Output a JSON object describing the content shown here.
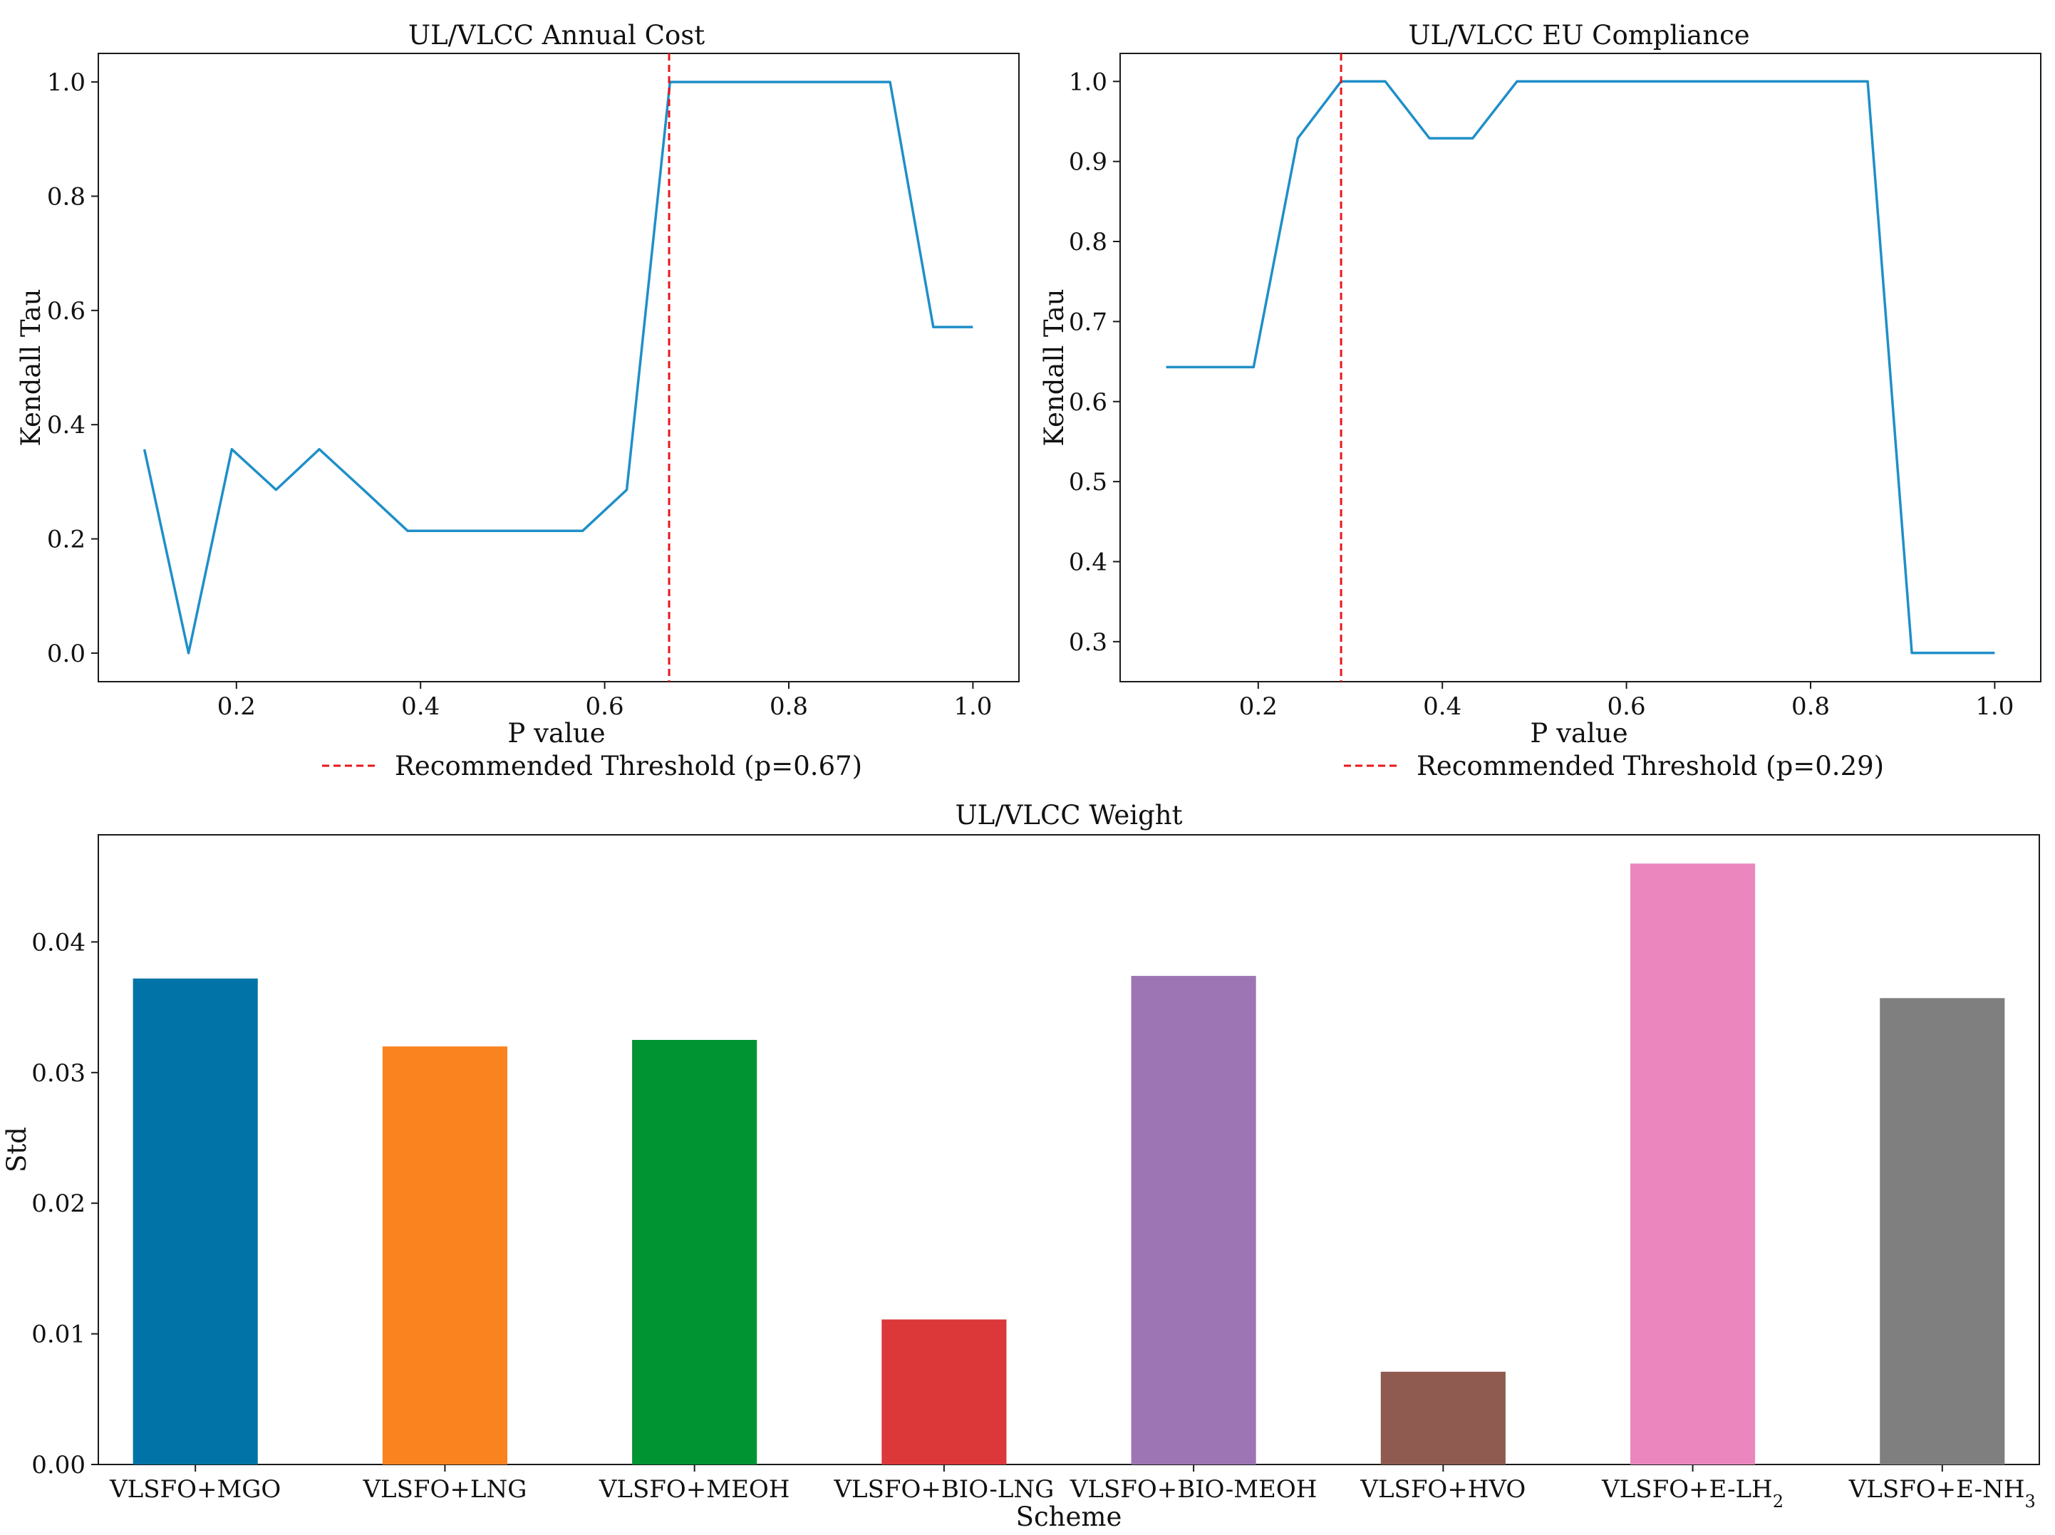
{
  "chart_data": [
    {
      "type": "line",
      "title": "UL/VLCC Annual Cost",
      "xlabel": "P value",
      "ylabel": "Kendall Tau",
      "xlim": [
        0.05,
        1.05
      ],
      "ylim": [
        -0.05,
        1.05
      ],
      "xticks": [
        0.2,
        0.4,
        0.6,
        0.8,
        1.0
      ],
      "xtick_labels": [
        "0.2",
        "0.4",
        "0.6",
        "0.8",
        "1.0"
      ],
      "yticks": [
        0.0,
        0.2,
        0.4,
        0.6,
        0.8,
        1.0
      ],
      "ytick_labels": [
        "0.0",
        "0.2",
        "0.4",
        "0.6",
        "0.8",
        "1.0"
      ],
      "grid": false,
      "series": [
        {
          "name": "Kendall Tau",
          "color": "#1f8fc8",
          "x": [
            0.1,
            0.148,
            0.195,
            0.243,
            0.29,
            0.338,
            0.386,
            0.433,
            0.481,
            0.529,
            0.576,
            0.624,
            0.671,
            0.719,
            0.767,
            0.814,
            0.862,
            0.91,
            0.957,
            1.0
          ],
          "y": [
            0.357,
            0.0,
            0.357,
            0.286,
            0.357,
            0.286,
            0.214,
            0.214,
            0.214,
            0.214,
            0.214,
            0.286,
            1.0,
            1.0,
            1.0,
            1.0,
            1.0,
            1.0,
            0.571,
            0.571
          ]
        }
      ],
      "threshold": {
        "value": 0.67,
        "color": "#e8161b",
        "label": "Recommended Threshold (p=0.67)"
      },
      "legend_position": "below"
    },
    {
      "type": "line",
      "title": "UL/VLCC EU Compliance",
      "xlabel": "P value",
      "ylabel": "Kendall Tau",
      "xlim": [
        0.05,
        1.05
      ],
      "ylim": [
        0.25,
        1.035
      ],
      "xticks": [
        0.2,
        0.4,
        0.6,
        0.8,
        1.0
      ],
      "xtick_labels": [
        "0.2",
        "0.4",
        "0.6",
        "0.8",
        "1.0"
      ],
      "yticks": [
        0.3,
        0.4,
        0.5,
        0.6,
        0.7,
        0.8,
        0.9,
        1.0
      ],
      "ytick_labels": [
        "0.3",
        "0.4",
        "0.5",
        "0.6",
        "0.7",
        "0.8",
        "0.9",
        "1.0"
      ],
      "grid": false,
      "series": [
        {
          "name": "Kendall Tau",
          "color": "#1f8fc8",
          "x": [
            0.1,
            0.148,
            0.195,
            0.243,
            0.29,
            0.338,
            0.386,
            0.433,
            0.481,
            0.529,
            0.576,
            0.624,
            0.671,
            0.719,
            0.767,
            0.814,
            0.862,
            0.91,
            0.957,
            1.0
          ],
          "y": [
            0.643,
            0.643,
            0.643,
            0.929,
            1.0,
            1.0,
            0.929,
            0.929,
            1.0,
            1.0,
            1.0,
            1.0,
            1.0,
            1.0,
            1.0,
            1.0,
            1.0,
            0.286,
            0.286,
            0.286
          ]
        }
      ],
      "threshold": {
        "value": 0.29,
        "color": "#e8161b",
        "label": "Recommended Threshold (p=0.29)"
      },
      "legend_position": "below"
    },
    {
      "type": "bar",
      "title": "UL/VLCC Weight",
      "xlabel": "Scheme",
      "ylabel": "Std",
      "ylim": [
        0,
        0.0482
      ],
      "yticks": [
        0.0,
        0.01,
        0.02,
        0.03,
        0.04
      ],
      "ytick_labels": [
        "0.00",
        "0.01",
        "0.02",
        "0.03",
        "0.04"
      ],
      "grid": false,
      "categories": [
        {
          "main": "VLSFO+MGO",
          "sub": "",
          "tail": ""
        },
        {
          "main": "VLSFO+LNG",
          "sub": "",
          "tail": ""
        },
        {
          "main": "VLSFO+MEOH",
          "sub": "",
          "tail": ""
        },
        {
          "main": "VLSFO+BIO-LNG",
          "sub": "",
          "tail": ""
        },
        {
          "main": "VLSFO+BIO-MEOH",
          "sub": "",
          "tail": ""
        },
        {
          "main": "VLSFO+HVO",
          "sub": "",
          "tail": ""
        },
        {
          "main": "VLSFO+E-LH",
          "sub": "2",
          "tail": ""
        },
        {
          "main": "VLSFO+E-NH",
          "sub": "3",
          "tail": ""
        }
      ],
      "values": [
        0.0372,
        0.032,
        0.0325,
        0.0111,
        0.0374,
        0.0071,
        0.046,
        0.0357
      ],
      "colors": [
        "#0173a6",
        "#fb831f",
        "#009432",
        "#dc3739",
        "#9d75b5",
        "#8f5a50",
        "#ec86be",
        "#7f7f7f"
      ]
    }
  ]
}
